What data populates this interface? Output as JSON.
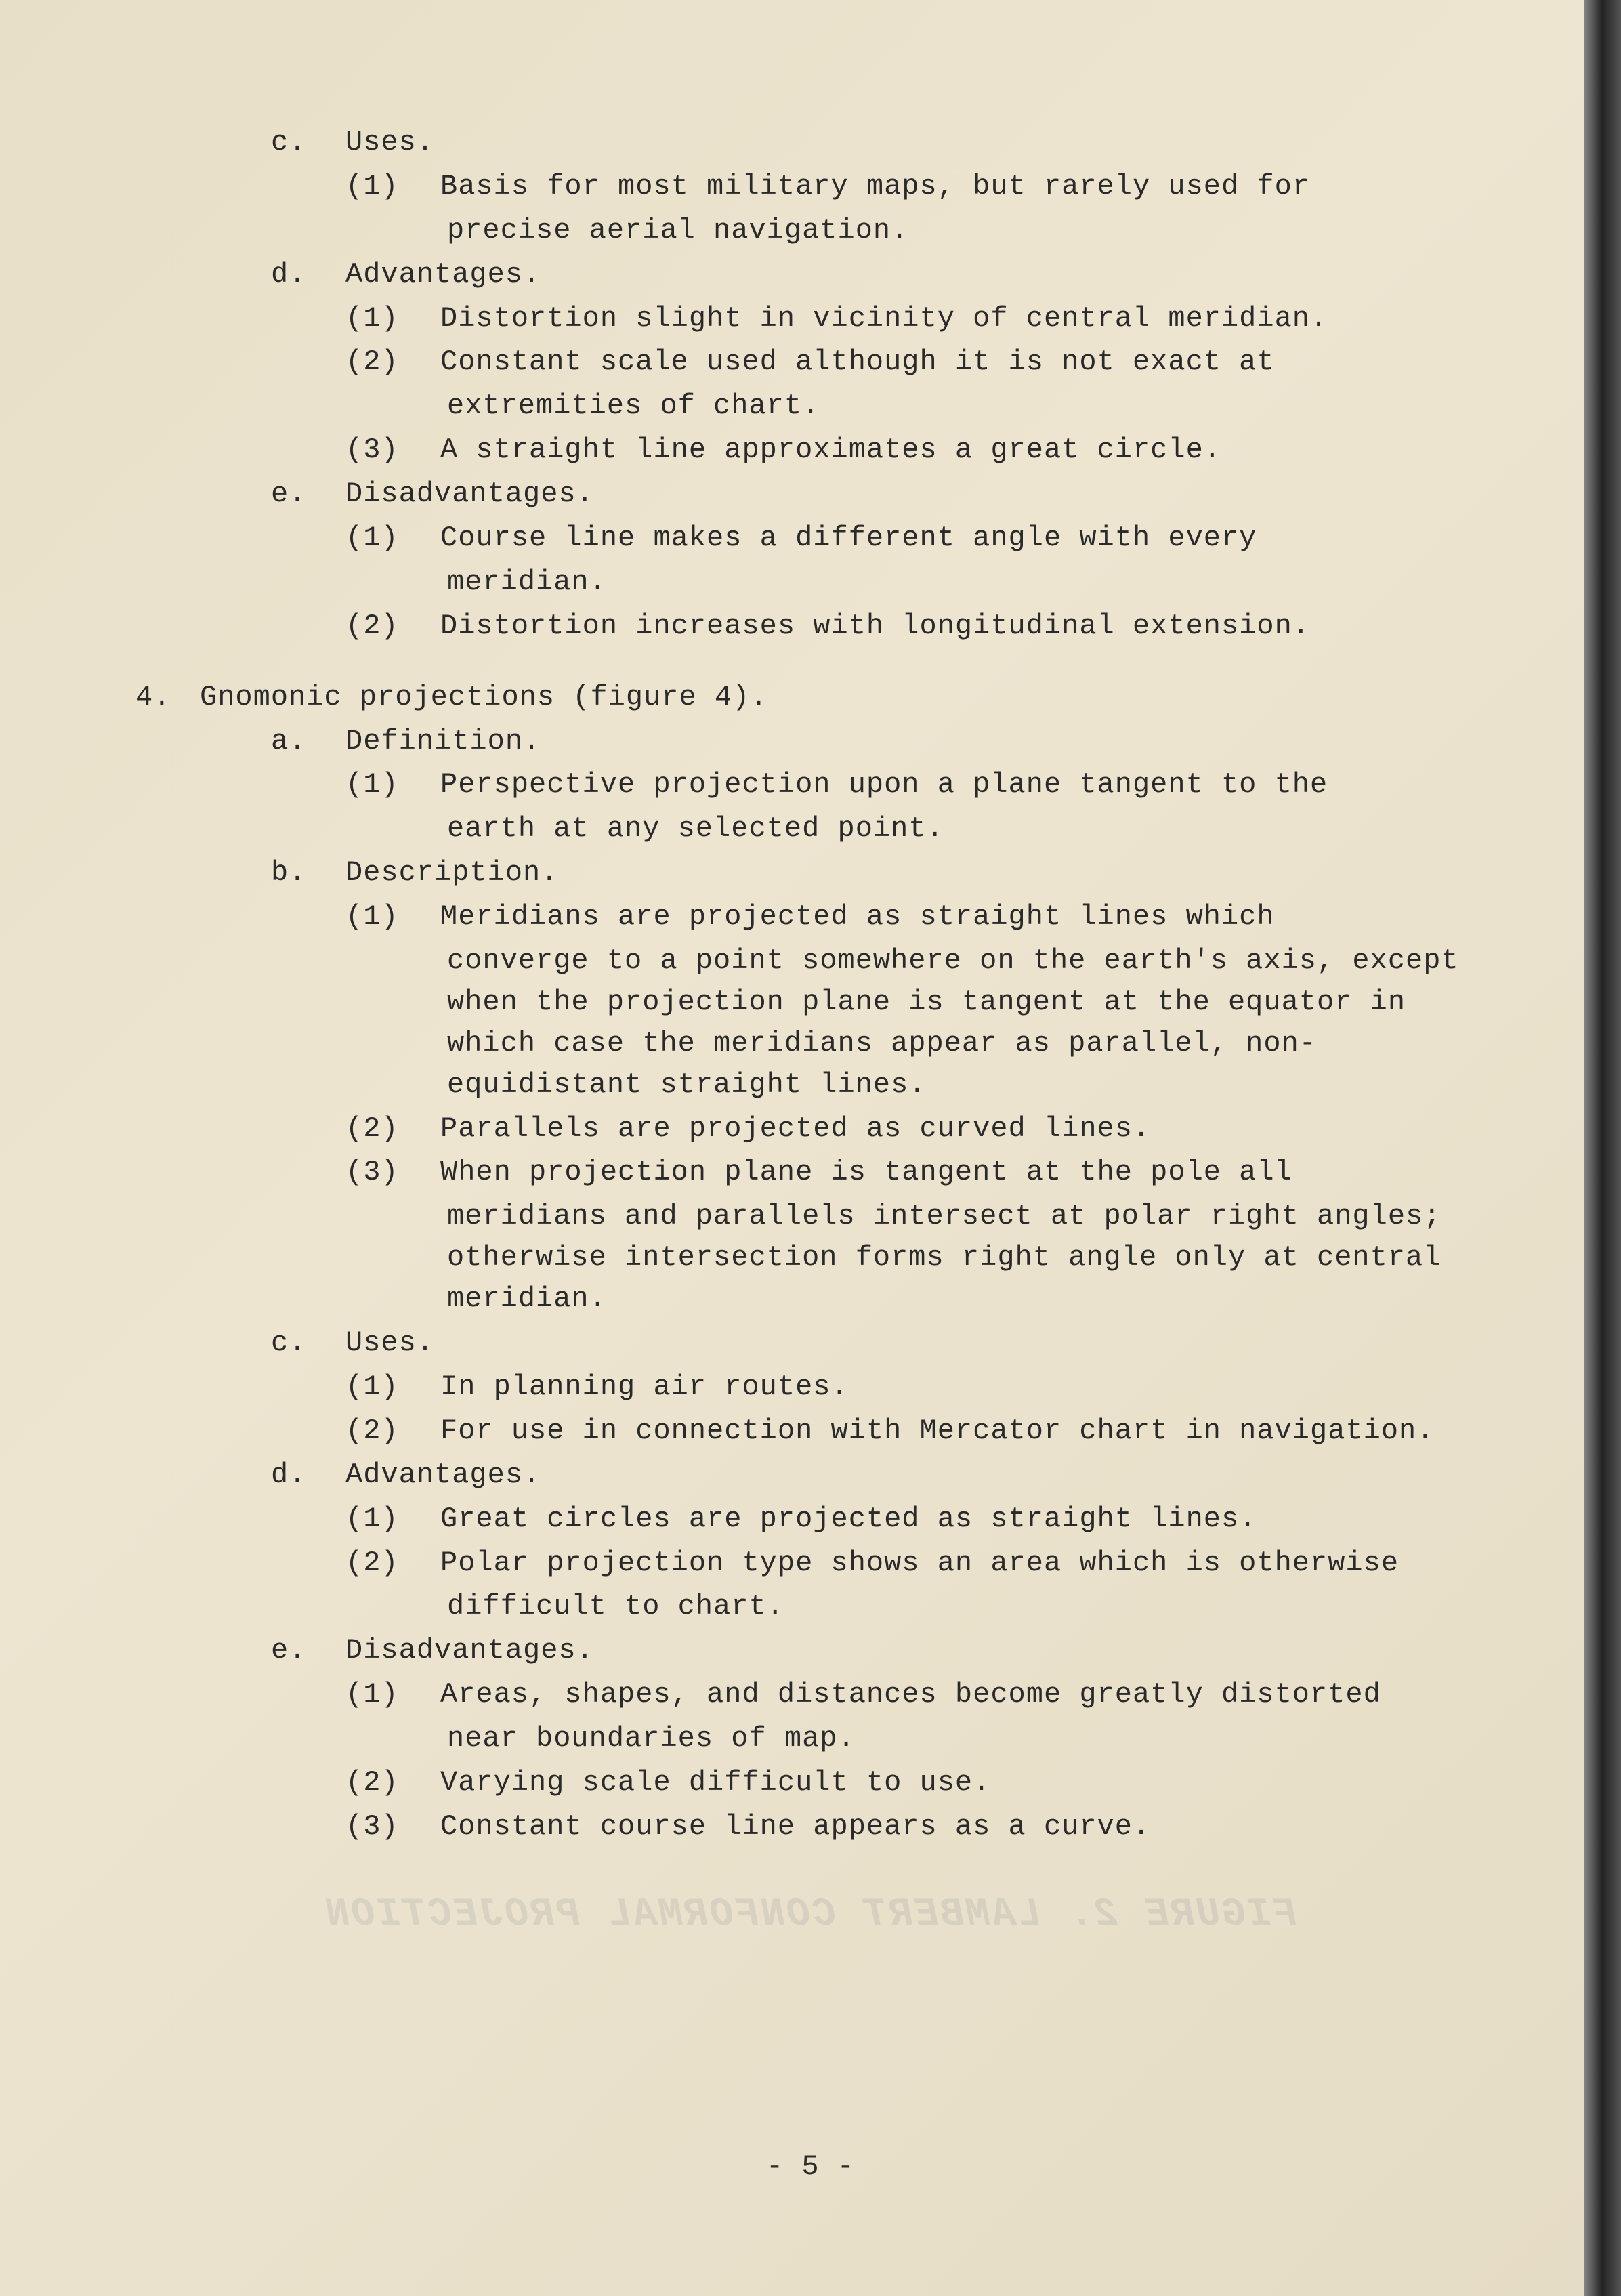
{
  "page": {
    "number": "- 5 -",
    "background_color": "#e8dfc8",
    "text_color": "#2a2a2a",
    "font_family": "Courier New",
    "font_size_pt": 42,
    "faint_bleed_text": "FIGURE 2. LAMBERT CONFORMAL PROJECTION"
  },
  "section3": {
    "c": {
      "marker": "c.",
      "heading": "Uses.",
      "items": [
        {
          "marker": "(1)",
          "text": "Basis for most military maps, but rarely used for",
          "cont": "precise aerial navigation."
        }
      ]
    },
    "d": {
      "marker": "d.",
      "heading": "Advantages.",
      "items": [
        {
          "marker": "(1)",
          "text": "Distortion slight in vicinity of central meridian."
        },
        {
          "marker": "(2)",
          "text": "Constant scale used although it is not exact at",
          "cont": "extremities of chart."
        },
        {
          "marker": "(3)",
          "text": "A straight line approximates a great circle."
        }
      ]
    },
    "e": {
      "marker": "e.",
      "heading": "Disadvantages.",
      "items": [
        {
          "marker": "(1)",
          "text": "Course line makes a different angle with every",
          "cont": "meridian."
        },
        {
          "marker": "(2)",
          "text": "Distortion increases with longitudinal extension."
        }
      ]
    }
  },
  "section4": {
    "marker": "4.",
    "heading": "Gnomonic projections (figure 4).",
    "a": {
      "marker": "a.",
      "heading": "Definition.",
      "items": [
        {
          "marker": "(1)",
          "text": "Perspective projection upon a plane tangent to the",
          "cont": "earth at any selected point."
        }
      ]
    },
    "b": {
      "marker": "b.",
      "heading": "Description.",
      "items": [
        {
          "marker": "(1)",
          "text": "Meridians are projected as straight lines which",
          "cont": "converge to a point somewhere on the earth's axis, except when the projection plane is tangent at the equator in which case the meridians appear as parallel, non-equidistant straight lines."
        },
        {
          "marker": "(2)",
          "text": "Parallels are projected as curved lines."
        },
        {
          "marker": "(3)",
          "text": "When projection plane is tangent at the pole all",
          "cont": "meridians and parallels intersect at polar right angles; otherwise intersection forms right angle only at central meridian."
        }
      ]
    },
    "c": {
      "marker": "c.",
      "heading": "Uses.",
      "items": [
        {
          "marker": "(1)",
          "text": "In planning air routes."
        },
        {
          "marker": "(2)",
          "text": "For use in connection with Mercator chart in navigation."
        }
      ]
    },
    "d": {
      "marker": "d.",
      "heading": "Advantages.",
      "items": [
        {
          "marker": "(1)",
          "text": "Great circles are projected as straight lines."
        },
        {
          "marker": "(2)",
          "text": "Polar projection type shows an area which is otherwise",
          "cont": "difficult to chart."
        }
      ]
    },
    "e": {
      "marker": "e.",
      "heading": "Disadvantages.",
      "items": [
        {
          "marker": "(1)",
          "text": "Areas, shapes, and distances become greatly distorted",
          "cont": "near boundaries of map."
        },
        {
          "marker": "(2)",
          "text": "Varying scale difficult to use."
        },
        {
          "marker": "(3)",
          "text": "Constant course line appears as a curve."
        }
      ]
    }
  }
}
